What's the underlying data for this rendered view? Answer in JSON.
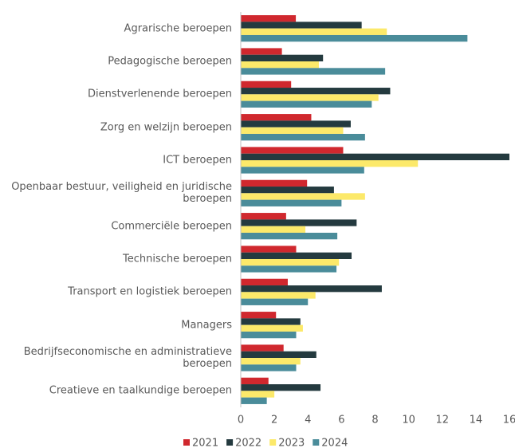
{
  "chart_data": {
    "type": "hbar",
    "categories": [
      "Agrarische beroepen",
      "Pedagogische beroepen",
      "Dienstverlenende beroepen",
      "Zorg en welzijn beroepen",
      "ICT beroepen",
      "Openbaar bestuur, veiligheid en juridische beroepen",
      "Commerciële beroepen",
      "Technische beroepen",
      "Transport en logistiek beroepen",
      "Managers",
      "Bedrijfseconomische en administratieve beroepen",
      "Creatieve en taalkundige beroepen"
    ],
    "series": [
      {
        "name": "2021",
        "color": "#d0282e",
        "values": [
          3.28,
          2.45,
          3.0,
          4.2,
          6.1,
          3.95,
          2.7,
          3.3,
          2.8,
          2.1,
          2.55,
          1.65
        ]
      },
      {
        "name": "2022",
        "color": "#243a3f",
        "values": [
          7.2,
          4.9,
          8.9,
          6.55,
          16,
          5.55,
          6.9,
          6.6,
          8.4,
          3.55,
          4.5,
          4.75
        ]
      },
      {
        "name": "2023",
        "color": "#fce96a",
        "values": [
          8.7,
          4.65,
          8.2,
          6.1,
          10.55,
          7.4,
          3.85,
          5.85,
          4.45,
          3.7,
          3.55,
          2.0
        ]
      },
      {
        "name": "2024",
        "color": "#4a8c9a",
        "values": [
          13.5,
          8.6,
          7.8,
          7.4,
          7.35,
          6.0,
          5.75,
          5.7,
          4.0,
          3.3,
          3.3,
          1.55
        ]
      }
    ],
    "xlim": [
      0,
      16
    ],
    "xticks": [
      0,
      2,
      4,
      6,
      8,
      10,
      12,
      14,
      16
    ],
    "legend": "bottom"
  }
}
